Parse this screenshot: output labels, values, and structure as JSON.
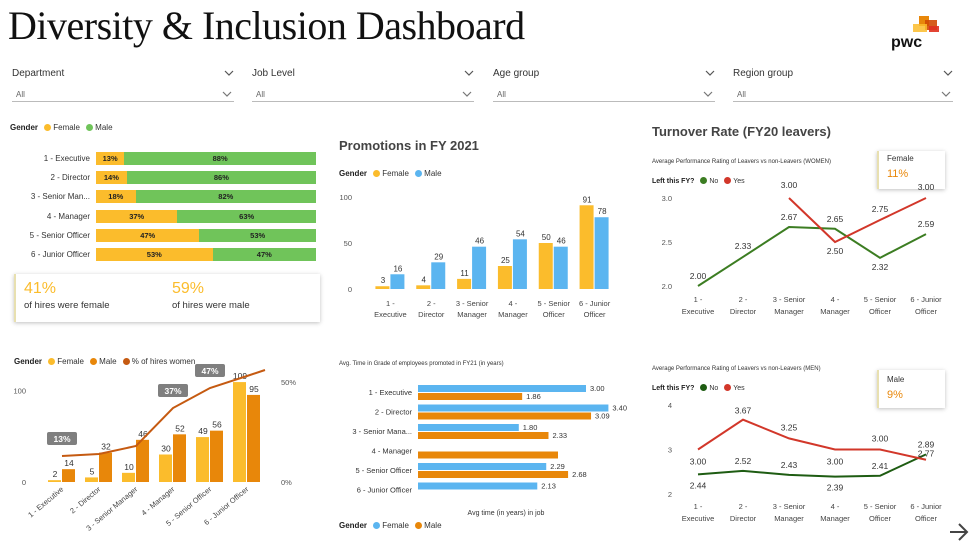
{
  "header": {
    "title": "Diversity & Inclusion Dashboard",
    "logo_text": "pwc"
  },
  "filters": [
    {
      "label": "Department",
      "value": "All"
    },
    {
      "label": "Job Level",
      "value": "All"
    },
    {
      "label": "Age group",
      "value": "All"
    },
    {
      "label": "Region group",
      "value": "All"
    }
  ],
  "colors": {
    "female": "#fbbc2c",
    "male": "#70c45a",
    "promo_female": "#fbbc2c",
    "promo_male": "#5bb5f0",
    "tg_blue": "#5bb5f0",
    "tg_orange": "#e8870a",
    "orange": "#e8870a",
    "gold": "#fbbc2c",
    "line_no": "#3c7d22",
    "line_yes": "#d2372a",
    "trend": "#c55a11"
  },
  "gender_split": {
    "legend_title": "Gender",
    "female_label": "Female",
    "male_label": "Male",
    "rows": [
      {
        "label": "1 - Executive",
        "female": 13,
        "male": 88,
        "female_text": "13%",
        "male_text": "88%"
      },
      {
        "label": "2 - Director",
        "female": 14,
        "male": 86,
        "female_text": "14%",
        "male_text": "86%"
      },
      {
        "label": "3 - Senior Man...",
        "female": 18,
        "male": 82,
        "female_text": "18%",
        "male_text": "82%"
      },
      {
        "label": "4 - Manager",
        "female": 37,
        "male": 63,
        "female_text": "37%",
        "male_text": "63%"
      },
      {
        "label": "5 - Senior Officer",
        "female": 47,
        "male": 53,
        "female_text": "47%",
        "male_text": "53%"
      },
      {
        "label": "6 - Junior Officer",
        "female": 53,
        "male": 47,
        "female_text": "53%",
        "male_text": "47%"
      }
    ]
  },
  "hires_card": {
    "female_value": "41%",
    "female_text": "of hires were female",
    "male_value": "59%",
    "male_text": "of hires were male"
  },
  "promotions": {
    "title": "Promotions in FY 2021",
    "legend_title": "Gender",
    "female_label": "Female",
    "male_label": "Male",
    "y_ticks": [
      "100",
      "50",
      "0"
    ],
    "chart_data": {
      "type": "bar",
      "categories": [
        "1 - Executive",
        "2 - Director",
        "3 - Senior Manager",
        "4 - Manager",
        "5 - Senior Officer",
        "6 - Junior Officer"
      ],
      "category_lines": [
        [
          "1 -",
          "Executive"
        ],
        [
          "2 -",
          "Director"
        ],
        [
          "3 - Senior",
          "Manager"
        ],
        [
          "4 -",
          "Manager"
        ],
        [
          "5 - Senior",
          "Officer"
        ],
        [
          "6 - Junior",
          "Officer"
        ]
      ],
      "series": [
        {
          "name": "Female",
          "values": [
            3,
            4,
            11,
            25,
            50,
            91
          ]
        },
        {
          "name": "Male",
          "values": [
            16,
            29,
            46,
            54,
            46,
            78
          ]
        }
      ],
      "ylim": [
        0,
        100
      ]
    }
  },
  "turnover": {
    "title": "Turnover Rate (FY20 leavers)",
    "women": {
      "chart_title": "Average Performance Rating of Leavers vs non-Leavers (WOMEN)",
      "legend_title": "Left this FY?",
      "no_label": "No",
      "yes_label": "Yes",
      "card_label": "Female",
      "card_value": "11%",
      "y_ticks": [
        "3.0",
        "2.5",
        "2.0"
      ],
      "chart_data": {
        "type": "line",
        "categories": [
          "1 - Executive",
          "2 - Director",
          "3 - Senior Manager",
          "4 - Manager",
          "5 - Senior Officer",
          "6 - Junior Officer"
        ],
        "category_lines": [
          [
            "1 -",
            "Executive"
          ],
          [
            "2 -",
            "Director"
          ],
          [
            "3 - Senior",
            "Manager"
          ],
          [
            "4 -",
            "Manager"
          ],
          [
            "5 - Senior",
            "Officer"
          ],
          [
            "6 - Junior",
            "Officer"
          ]
        ],
        "series": [
          {
            "name": "No",
            "values": [
              2.0,
              2.33,
              2.67,
              2.65,
              2.32,
              2.59
            ],
            "labels": [
              "2.00",
              "2.33",
              "2.67",
              "2.65",
              "2.32",
              "2.59"
            ]
          },
          {
            "name": "Yes",
            "values": [
              null,
              null,
              3.0,
              2.5,
              2.75,
              3.0
            ],
            "labels": [
              "",
              "",
              "3.00",
              "2.50",
              "2.75",
              "3.00"
            ]
          }
        ],
        "ylim": [
          2.0,
          3.0
        ]
      }
    },
    "men": {
      "chart_title": "Average Performance Rating of Leavers vs non-Leavers (MEN)",
      "legend_title": "Left this FY?",
      "no_label": "No",
      "yes_label": "Yes",
      "card_label": "Male",
      "card_value": "9%",
      "y_ticks": [
        "4",
        "3",
        "2"
      ],
      "chart_data": {
        "type": "line",
        "categories": [
          "1 - Executive",
          "2 - Director",
          "3 - Senior Manager",
          "4 - Manager",
          "5 - Senior Officer",
          "6 - Junior Officer"
        ],
        "category_lines": [
          [
            "1 -",
            "Executive"
          ],
          [
            "2 -",
            "Director"
          ],
          [
            "3 - Senior",
            "Manager"
          ],
          [
            "4 -",
            "Manager"
          ],
          [
            "5 - Senior",
            "Officer"
          ],
          [
            "6 - Junior",
            "Officer"
          ]
        ],
        "series": [
          {
            "name": "No",
            "values": [
              2.44,
              2.52,
              2.43,
              2.39,
              2.41,
              2.89
            ],
            "labels": [
              "2.44",
              "2.52",
              "2.43",
              "2.39",
              "2.41",
              "2.89"
            ]
          },
          {
            "name": "Yes",
            "values": [
              3.0,
              3.67,
              3.25,
              3.0,
              3.0,
              2.77
            ],
            "labels": [
              "3.00",
              "3.67",
              "3.25",
              "3.00",
              "3.00",
              "2.77"
            ]
          }
        ],
        "ylim": [
          2,
          4
        ]
      }
    }
  },
  "hires_combo": {
    "legend_title": "Gender",
    "female_label": "Female",
    "male_label": "Male",
    "pct_label": "% of hires women",
    "y_ticks_left": [
      "100",
      "0"
    ],
    "y_ticks_right": [
      "50%",
      "0%"
    ],
    "chart_data": {
      "type": "bar",
      "categories": [
        "1 - Executive",
        "2 - Director",
        "3 - Senior Manager",
        "4 - Manager",
        "5 - Senior Officer",
        "6 - Junior Officer"
      ],
      "series": [
        {
          "name": "Female",
          "values": [
            2,
            5,
            10,
            30,
            49,
            109
          ]
        },
        {
          "name": "Male",
          "values": [
            14,
            32,
            46,
            52,
            56,
            95
          ]
        },
        {
          "name": "% of hires women",
          "values": [
            13,
            14,
            18,
            37,
            47,
            53
          ]
        }
      ],
      "pct_callouts": [
        {
          "index": 0,
          "text": "13%"
        },
        {
          "index": 3,
          "text": "37%"
        },
        {
          "index": 4,
          "text": "47%"
        }
      ],
      "ylim": [
        0,
        120
      ],
      "y2lim": [
        0,
        55
      ]
    }
  },
  "time_in_grade": {
    "chart_title": "Avg. Time in Grade of employees promoted in FY21 (in years)",
    "xlabel": "Avg time (in years) in job",
    "legend_title": "Gender",
    "female_label": "Female",
    "male_label": "Male",
    "chart_data": {
      "type": "bar",
      "categories": [
        "1 - Executive",
        "2 - Director",
        "3 - Senior Mana...",
        "4 - Manager",
        "5 - Senior Officer",
        "6 - Junior Officer"
      ],
      "series": [
        {
          "name": "Female",
          "values": [
            3.0,
            3.4,
            1.8,
            null,
            2.29,
            2.13
          ],
          "labels": [
            "3.00",
            "3.40",
            "1.80",
            "",
            "2.29",
            "2.13"
          ]
        },
        {
          "name": "Male",
          "values": [
            1.86,
            3.09,
            2.33,
            2.5,
            2.68,
            null
          ],
          "labels": [
            "1.86",
            "3.09",
            "2.33",
            "",
            "2.68",
            ""
          ]
        }
      ],
      "xlim": [
        0,
        3.5
      ]
    }
  }
}
